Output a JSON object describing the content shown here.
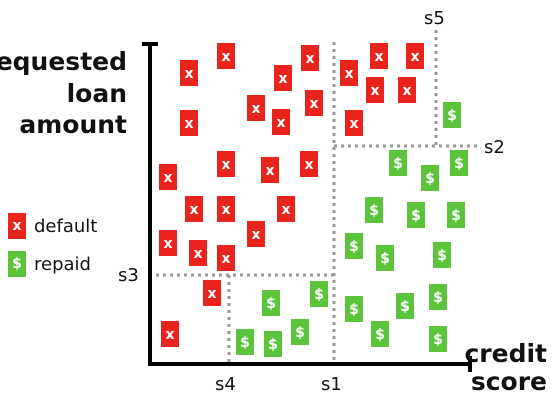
{
  "axes": {
    "y_label_lines": [
      "requested",
      "loan",
      "amount"
    ],
    "x_label_lines": [
      "credit",
      "score"
    ]
  },
  "legend": {
    "default": {
      "symbol": "x",
      "label": "default",
      "color": "#e8241c"
    },
    "repaid": {
      "symbol": "$",
      "label": "repaid",
      "color": "#5bc43a"
    }
  },
  "splits": [
    {
      "name": "s1",
      "orientation": "vertical"
    },
    {
      "name": "s2",
      "orientation": "horizontal"
    },
    {
      "name": "s3",
      "orientation": "horizontal"
    },
    {
      "name": "s4",
      "orientation": "vertical"
    },
    {
      "name": "s5",
      "orientation": "vertical"
    }
  ],
  "markers": {
    "default": [
      [
        189,
        73
      ],
      [
        226,
        56
      ],
      [
        283,
        78
      ],
      [
        310,
        58
      ],
      [
        189,
        123
      ],
      [
        256,
        108
      ],
      [
        281,
        122
      ],
      [
        314,
        103
      ],
      [
        349,
        73
      ],
      [
        379,
        56
      ],
      [
        415,
        56
      ],
      [
        375,
        90
      ],
      [
        407,
        90
      ],
      [
        354,
        123
      ],
      [
        168,
        177
      ],
      [
        226,
        164
      ],
      [
        270,
        170
      ],
      [
        309,
        164
      ],
      [
        194,
        209
      ],
      [
        226,
        209
      ],
      [
        256,
        234
      ],
      [
        286,
        209
      ],
      [
        168,
        243
      ],
      [
        198,
        253
      ],
      [
        226,
        258
      ],
      [
        212,
        293
      ],
      [
        170,
        334
      ]
    ],
    "repaid": [
      [
        452,
        115
      ],
      [
        398,
        163
      ],
      [
        430,
        178
      ],
      [
        459,
        163
      ],
      [
        374,
        210
      ],
      [
        416,
        215
      ],
      [
        456,
        215
      ],
      [
        354,
        246
      ],
      [
        385,
        258
      ],
      [
        442,
        255
      ],
      [
        271,
        303
      ],
      [
        319,
        294
      ],
      [
        354,
        309
      ],
      [
        380,
        334
      ],
      [
        405,
        306
      ],
      [
        438,
        297
      ],
      [
        438,
        339
      ],
      [
        245,
        342
      ],
      [
        273,
        344
      ],
      [
        300,
        332
      ]
    ]
  }
}
